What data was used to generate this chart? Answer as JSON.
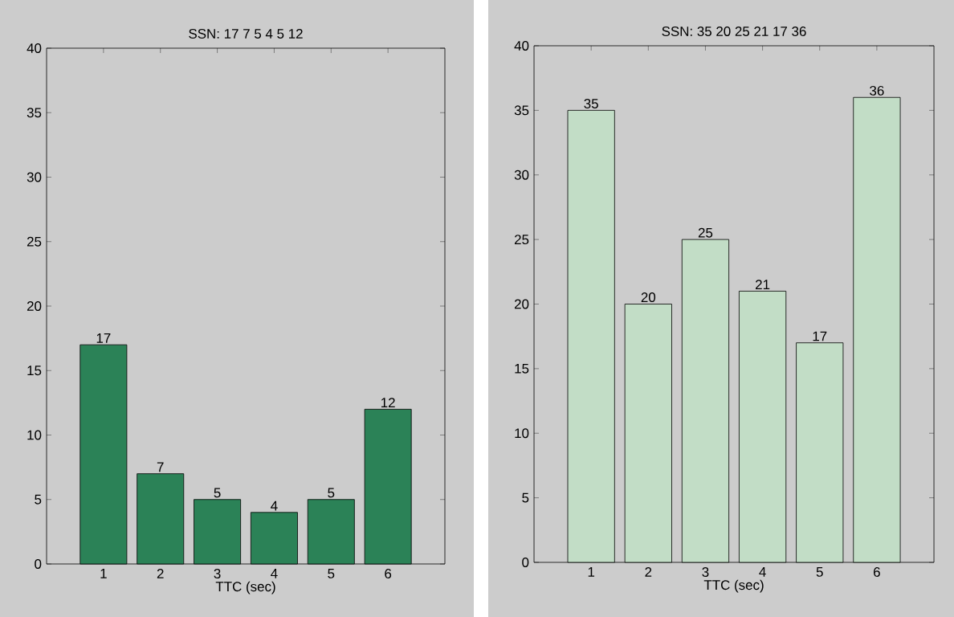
{
  "chart_data": [
    {
      "type": "bar",
      "title": "SSN: 17 7 5 4 5 12",
      "xlabel": "TTC (sec)",
      "categories": [
        "1",
        "2",
        "3",
        "4",
        "5",
        "6"
      ],
      "values": [
        17,
        7,
        5,
        4,
        5,
        12
      ],
      "color": "#2b8257",
      "ylim": [
        0,
        40
      ],
      "yticks": [
        0,
        5,
        10,
        15,
        20,
        25,
        30,
        35,
        40
      ],
      "data_labels": true
    },
    {
      "type": "bar",
      "title": "SSN: 35 20 25 21 17 36",
      "xlabel": "TTC (sec)",
      "categories": [
        "1",
        "2",
        "3",
        "4",
        "5",
        "6"
      ],
      "values": [
        35,
        20,
        25,
        21,
        17,
        36
      ],
      "color": "#c2ddc6",
      "ylim": [
        0,
        40
      ],
      "yticks": [
        0,
        5,
        10,
        15,
        20,
        25,
        30,
        35,
        40
      ],
      "data_labels": true
    }
  ]
}
